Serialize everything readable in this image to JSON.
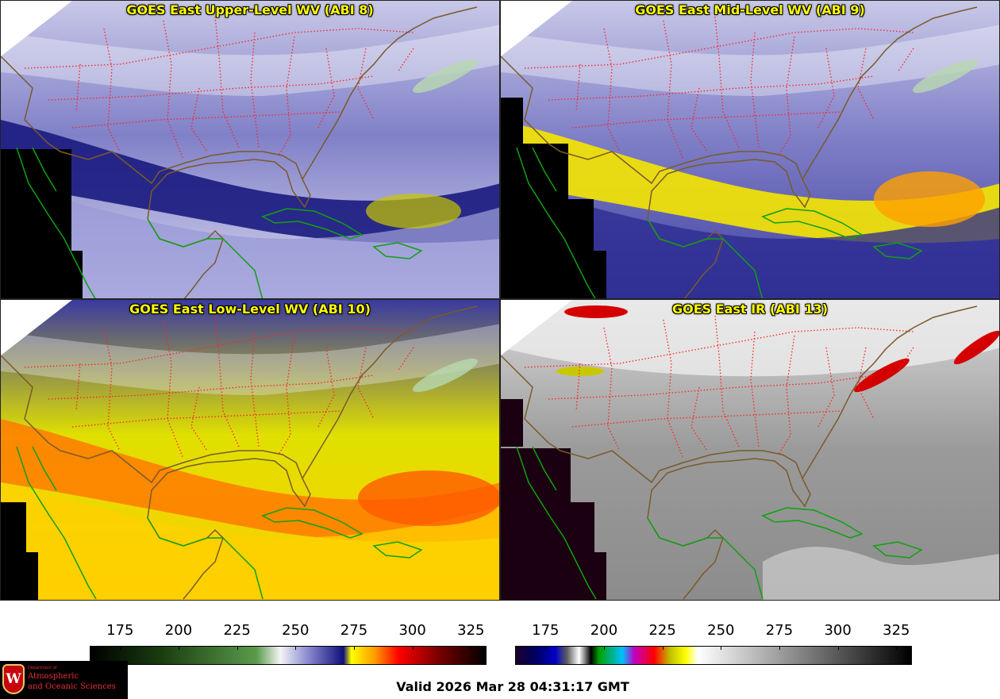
{
  "panels": [
    {
      "id": "p1",
      "title": "GOES East Upper-Level WV (ABI 8)",
      "scheme": "wv",
      "wet_level": 0.25
    },
    {
      "id": "p2",
      "title": "GOES East Mid-Level WV (ABI 9)",
      "scheme": "wv",
      "wet_level": 0.55
    },
    {
      "id": "p3",
      "title": "GOES East Low-Level WV (ABI 10)",
      "scheme": "wv",
      "wet_level": 0.85
    },
    {
      "id": "p4",
      "title": "GOES East IR (ABI 13)",
      "scheme": "ir",
      "wet_level": 0.0
    }
  ],
  "colorbars": [
    {
      "name": "wv-colorbar",
      "min": 162,
      "max": 331,
      "ticks": [
        "175",
        "200",
        "225",
        "250",
        "275",
        "300",
        "325"
      ],
      "stops": [
        [
          "0",
          "#000000"
        ],
        [
          "0.18",
          "#1a3d10"
        ],
        [
          "0.42",
          "#5a9a4a"
        ],
        [
          "0.48",
          "#f4f4f4"
        ],
        [
          "0.55",
          "#8a8ad0"
        ],
        [
          "0.64",
          "#10107a"
        ],
        [
          "0.66",
          "#ffff00"
        ],
        [
          "0.72",
          "#ff9900"
        ],
        [
          "0.78",
          "#ff0000"
        ],
        [
          "0.88",
          "#7a0000"
        ],
        [
          "1",
          "#000000"
        ]
      ]
    },
    {
      "name": "ir-colorbar",
      "min": 162,
      "max": 331,
      "ticks": [
        "175",
        "200",
        "225",
        "250",
        "275",
        "300",
        "325"
      ],
      "stops": [
        [
          "0",
          "#1a002a"
        ],
        [
          "0.05",
          "#000060"
        ],
        [
          "0.1",
          "#0000c8"
        ],
        [
          "0.13",
          "#606060"
        ],
        [
          "0.16",
          "#ffffff"
        ],
        [
          "0.19",
          "#000000"
        ],
        [
          "0.21",
          "#00a000"
        ],
        [
          "0.27",
          "#00c0ff"
        ],
        [
          "0.3",
          "#c000c0"
        ],
        [
          "0.35",
          "#ff0000"
        ],
        [
          "0.39",
          "#c0c000"
        ],
        [
          "0.43",
          "#ffff00"
        ],
        [
          "0.46",
          "#ffffff"
        ],
        [
          "1",
          "#000000"
        ]
      ]
    }
  ],
  "valid_time": "Valid 2026 Mar 28 04:31:17 GMT",
  "logo": {
    "dept": "Department of",
    "line1": "Atmospheric",
    "line2": "and Oceanic Sciences",
    "seal_letter": "W"
  },
  "colors": {
    "borders": "#ff2020",
    "coastline_land": "#7a5a2a",
    "coastline_sea": "#10a010",
    "title": "#ffff00"
  }
}
